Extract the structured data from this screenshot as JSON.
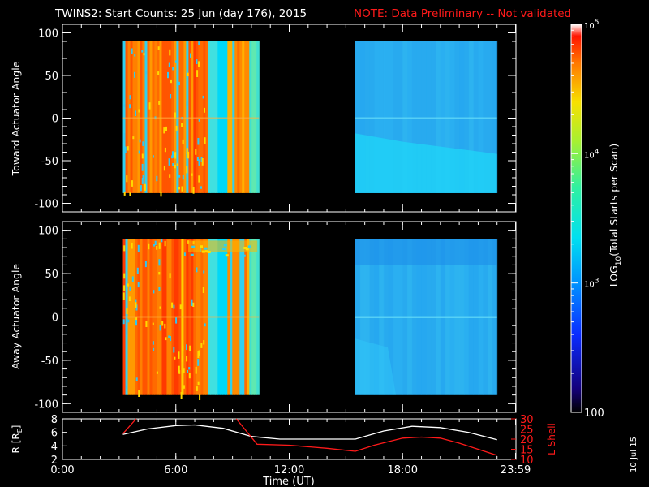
{
  "header": {
    "title": "TWINS2: Start Counts: 25 Jun (day 176), 2015",
    "note": "NOTE: Data Preliminary -- Not validated"
  },
  "side_date": "10 Jul 15",
  "colors": {
    "background": "#000000",
    "note": "#ff1a1a",
    "r_line": "#ffffff",
    "l_line": "#ff1a1a"
  },
  "chart_data": [
    {
      "type": "heatmap",
      "name": "toward",
      "ylabel": "Toward Actuator Angle",
      "ylim": [
        -110,
        110
      ],
      "yticks": [
        100,
        50,
        0,
        -50,
        -100
      ],
      "xlim": [
        0,
        24
      ],
      "data_blocks": [
        {
          "x": [
            3.2,
            10.4
          ],
          "y": [
            -88,
            90
          ],
          "scheme": "hot"
        },
        {
          "x": [
            15.5,
            23.0
          ],
          "y": [
            -88,
            90
          ],
          "scheme": "cool"
        }
      ]
    },
    {
      "type": "heatmap",
      "name": "away",
      "ylabel": "Away Actuator Angle",
      "ylim": [
        -110,
        110
      ],
      "yticks": [
        100,
        50,
        0,
        -50,
        -100
      ],
      "xlim": [
        0,
        24
      ],
      "data_blocks": [
        {
          "x": [
            3.2,
            10.4
          ],
          "y": [
            -90,
            90
          ],
          "scheme": "hot"
        },
        {
          "x": [
            15.5,
            23.0
          ],
          "y": [
            -90,
            90
          ],
          "scheme": "cool"
        }
      ]
    },
    {
      "type": "colorbar",
      "label": "LOG10(Total Starts per Scan)",
      "label_main": "LOG",
      "label_sub": "10",
      "label_rest": "(Total Starts per Scan)",
      "scale": "log",
      "range": [
        100,
        100000
      ],
      "tick_labels": [
        {
          "value": 100000,
          "base": "10",
          "exp": "5"
        },
        {
          "value": 10000,
          "base": "10",
          "exp": "4"
        },
        {
          "value": 1000,
          "base": "10",
          "exp": "3"
        },
        {
          "value": 100,
          "text": "100"
        }
      ]
    },
    {
      "type": "line",
      "name": "orbit",
      "xlabel": "Time (UT)",
      "xlim": [
        0,
        24
      ],
      "xtick_values": [
        0,
        6,
        12,
        18,
        23.98
      ],
      "xtick_labels": [
        "0:00",
        "6:00",
        "12:00",
        "18:00",
        "23:59"
      ],
      "ylabel_left": "R [R",
      "ylabel_left_sub": "E",
      "ylabel_left_end": "]",
      "ylim_left": [
        2,
        8
      ],
      "yticks_left": [
        2,
        4,
        6,
        8
      ],
      "ylabel_right": "L Shell",
      "ylim_right": [
        10,
        30
      ],
      "yticks_right": [
        10,
        15,
        20,
        25,
        30
      ],
      "series": [
        {
          "axis": "left",
          "color": "#ffffff",
          "x": [
            3.2,
            4.5,
            6.0,
            7.0,
            8.5,
            10.0,
            11.5,
            13.0,
            15.5,
            17.0,
            18.5,
            20.0,
            21.5,
            23.0
          ],
          "y": [
            5.7,
            6.5,
            7.0,
            7.1,
            6.6,
            5.4,
            5.0,
            5.0,
            5.0,
            6.2,
            6.9,
            6.7,
            6.0,
            4.9
          ]
        },
        {
          "axis": "left",
          "color": "#ff1a1a",
          "x": [
            3.2,
            3.9
          ],
          "y": [
            5.8,
            8.0
          ]
        },
        {
          "axis": "right",
          "color": "#ff1a1a",
          "x": [
            9.2,
            10.3,
            12.0,
            14.0,
            15.5,
            16.5,
            18.0,
            19.0,
            20.0,
            21.0,
            22.0,
            23.0
          ],
          "y": [
            30,
            17.5,
            17.0,
            15.5,
            14.0,
            17.0,
            20.5,
            21.0,
            20.5,
            18.0,
            15.0,
            12.0
          ]
        }
      ]
    }
  ]
}
